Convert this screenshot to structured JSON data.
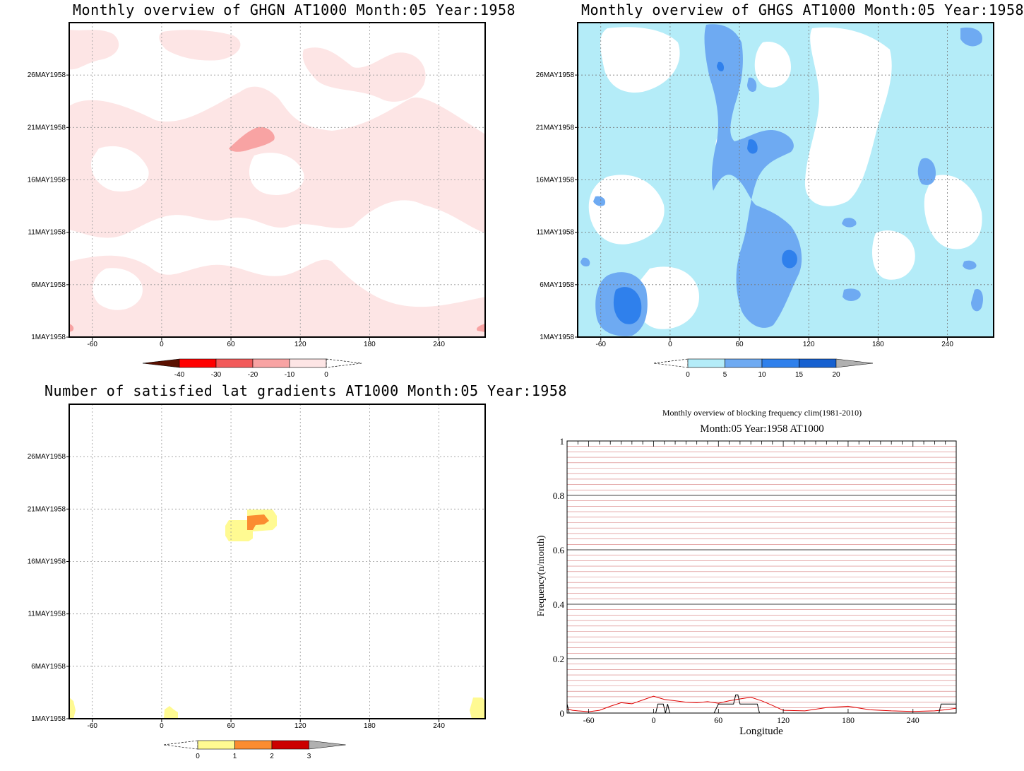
{
  "panels": {
    "ghgn": {
      "title": "Monthly overview of GHGN AT1000 Month:05 Year:1958",
      "colorbar": {
        "labels": [
          "-40",
          "-30",
          "-20",
          "-10",
          "0"
        ],
        "colors": [
          "#5a1000",
          "#ff0000",
          "#f25a5a",
          "#f8a3a3",
          "#fde5e5"
        ]
      }
    },
    "ghgs": {
      "title": "Monthly overview of GHGS AT1000 Month:05 Year:1958",
      "colorbar": {
        "labels": [
          "0",
          "5",
          "10",
          "15",
          "20"
        ],
        "colors": [
          "#b4ecf8",
          "#6eaaf2",
          "#2f80ec",
          "#1660d0",
          "#b0b0b0"
        ]
      }
    },
    "lat": {
      "title": "Number of satisfied lat gradients AT1000 Month:05 Year:1958",
      "colorbar": {
        "labels": [
          "0",
          "1",
          "2",
          "3"
        ],
        "colors": [
          "#fffa92",
          "#fb8c30",
          "#cc0000",
          "#b0b0b0"
        ]
      }
    },
    "freq": {
      "title": "Monthly overview of blocking frequency clim(1981-2010)",
      "subtitle": "Month:05 Year:1958  AT1000",
      "xlabel": "Longitude",
      "ylabel": "Frequency(n/month)"
    }
  },
  "hovmoller_axes": {
    "x_ticks": [
      "-60",
      "0",
      "60",
      "120",
      "180",
      "240"
    ],
    "x_values": [
      -60,
      0,
      60,
      120,
      180,
      240
    ],
    "xlim": [
      -80,
      280
    ],
    "y_ticks": [
      "1MAY1958",
      "6MAY1958",
      "11MAY1958",
      "16MAY1958",
      "21MAY1958",
      "26MAY1958"
    ],
    "y_values": [
      1,
      6,
      11,
      16,
      21,
      26
    ],
    "ylim": [
      1,
      31
    ]
  },
  "chart_data": [
    {
      "type": "heatmap",
      "title": "Monthly overview of GHGN AT1000 Month:05 Year:1958",
      "xlim": [
        -80,
        280
      ],
      "ylim": [
        1,
        31
      ],
      "levels": [
        -40,
        -30,
        -20,
        -10,
        0
      ],
      "note_regions": "mostly light pink (-10..0) patches; one -20..-10 patch near lon 70, 20MAY"
    },
    {
      "type": "heatmap",
      "title": "Monthly overview of GHGS AT1000 Month:05 Year:1958",
      "xlim": [
        -80,
        280
      ],
      "ylim": [
        1,
        31
      ],
      "levels": [
        0,
        5,
        10,
        15,
        20
      ]
    },
    {
      "type": "heatmap",
      "title": "Number of satisfied lat gradients AT1000 Month:05 Year:1958",
      "xlim": [
        -80,
        280
      ],
      "ylim": [
        1,
        31
      ],
      "levels": [
        0,
        1,
        2,
        3
      ],
      "cells": [
        {
          "lon": 70,
          "day": 19.5,
          "value": 0
        },
        {
          "lon": 85,
          "day": 20.0,
          "value": 1
        },
        {
          "lon": -77,
          "day": 1.5,
          "value": 0
        },
        {
          "lon": 8,
          "day": 1.3,
          "value": 0
        },
        {
          "lon": 276,
          "day": 2.0,
          "value": 0
        }
      ]
    },
    {
      "type": "line",
      "title": "Monthly overview of blocking frequency clim(1981-2010)",
      "subtitle": "Month:05 Year:1958  AT1000",
      "xlabel": "Longitude",
      "ylabel": "Frequency(n/month)",
      "xlim": [
        -80,
        280
      ],
      "ylim": [
        0,
        1
      ],
      "x_ticks": [
        -60,
        0,
        60,
        120,
        180,
        240
      ],
      "y_ticks": [
        0,
        0.2,
        0.4,
        0.6,
        0.8,
        1
      ],
      "series": [
        {
          "color": "#e00000",
          "x": [
            -80,
            -75,
            -70,
            -60,
            -50,
            -40,
            -30,
            -20,
            -10,
            0,
            10,
            20,
            30,
            40,
            50,
            60,
            70,
            80,
            90,
            100,
            110,
            120,
            140,
            160,
            180,
            200,
            220,
            240,
            260,
            270,
            280
          ],
          "values": [
            0.015,
            0.01,
            0.008,
            0.005,
            0.01,
            0.025,
            0.038,
            0.034,
            0.048,
            0.062,
            0.05,
            0.045,
            0.04,
            0.038,
            0.042,
            0.036,
            0.045,
            0.052,
            0.058,
            0.045,
            0.028,
            0.01,
            0.008,
            0.02,
            0.025,
            0.012,
            0.008,
            0.006,
            0.008,
            0.012,
            0.018
          ]
        },
        {
          "color": "#000000",
          "x": [
            -80,
            -78,
            -76,
            2,
            4,
            9,
            11,
            13,
            15,
            56,
            60,
            74,
            76,
            78,
            80,
            82,
            96,
            98,
            264,
            266,
            280
          ],
          "values": [
            0.033,
            0.0,
            0.0,
            0.0,
            0.033,
            0.033,
            0.0,
            0.033,
            0.0,
            0.0,
            0.033,
            0.033,
            0.067,
            0.067,
            0.033,
            0.033,
            0.033,
            0.0,
            0.0,
            0.033,
            0.033
          ]
        }
      ]
    }
  ]
}
